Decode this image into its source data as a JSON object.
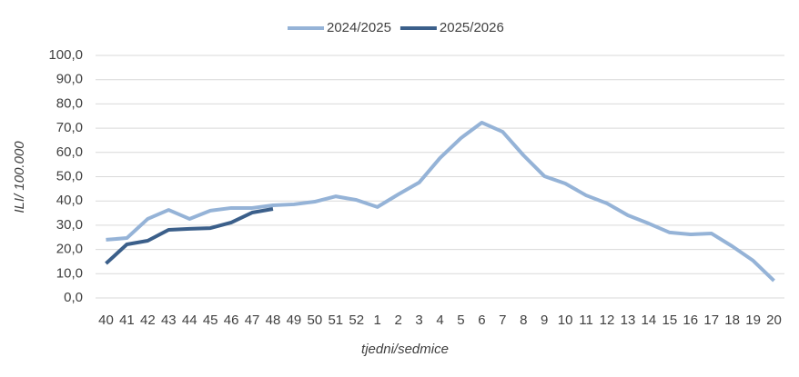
{
  "chart_data": {
    "type": "line",
    "categories": [
      "40",
      "41",
      "42",
      "43",
      "44",
      "45",
      "46",
      "47",
      "48",
      "49",
      "50",
      "51",
      "52",
      "1",
      "2",
      "3",
      "4",
      "5",
      "6",
      "7",
      "8",
      "9",
      "10",
      "11",
      "12",
      "13",
      "14",
      "15",
      "16",
      "17",
      "18",
      "19",
      "20"
    ],
    "series": [
      {
        "name": "2024/2025",
        "color": "#95b3d7",
        "values": [
          24.0,
          24.7,
          32.6,
          36.3,
          32.6,
          36.0,
          37.1,
          37.1,
          38.2,
          38.6,
          39.7,
          41.9,
          40.4,
          37.5,
          42.7,
          47.6,
          57.7,
          65.9,
          72.3,
          68.5,
          58.8,
          50.2,
          47.2,
          42.3,
          39.0,
          34.1,
          30.7,
          27.0,
          26.2,
          26.6,
          21.3,
          15.4,
          7.1
        ]
      },
      {
        "name": "2025/2026",
        "color": "#3b5f8a",
        "values": [
          14.2,
          22.1,
          23.6,
          28.1,
          28.5,
          28.8,
          31.1,
          35.2,
          36.7,
          null,
          null,
          null,
          null,
          null,
          null,
          null,
          null,
          null,
          null,
          null,
          null,
          null,
          null,
          null,
          null,
          null,
          null,
          null,
          null,
          null,
          null,
          null,
          null
        ]
      }
    ],
    "ylabel": "ILI/ 100.000",
    "xlabel": "tjedni/sedmice",
    "ylim": [
      0,
      100
    ],
    "yticks": [
      {
        "value": 0,
        "label": "0,0"
      },
      {
        "value": 10,
        "label": "10,0"
      },
      {
        "value": 20,
        "label": "20,0"
      },
      {
        "value": 30,
        "label": "30,0"
      },
      {
        "value": 40,
        "label": "40,0"
      },
      {
        "value": 50,
        "label": "50,0"
      },
      {
        "value": 60,
        "label": "60,0"
      },
      {
        "value": 70,
        "label": "70,0"
      },
      {
        "value": 80,
        "label": "80,0"
      },
      {
        "value": 90,
        "label": "90,0"
      },
      {
        "value": 100,
        "label": "100,0"
      }
    ],
    "grid": true,
    "legend": "top"
  }
}
